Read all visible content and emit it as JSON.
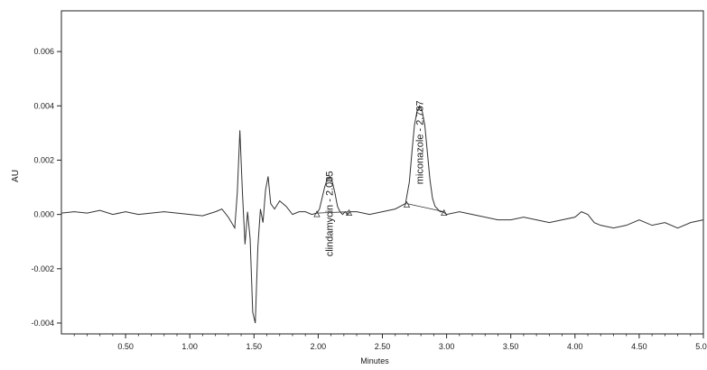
{
  "chart_data": {
    "type": "line",
    "title": "",
    "xlabel": "Minutes",
    "ylabel": "AU",
    "xlim": [
      0.0,
      5.0
    ],
    "ylim": [
      -0.0044,
      0.0075
    ],
    "xticks": [
      0.5,
      1.0,
      1.5,
      2.0,
      2.5,
      3.0,
      3.5,
      4.0,
      4.5,
      5.0
    ],
    "xtick_labels": [
      "0.50",
      "1.00",
      "1.50",
      "2.00",
      "2.50",
      "3.00",
      "3.50",
      "4.00",
      "4.50",
      "5.00"
    ],
    "yticks": [
      -0.004,
      -0.002,
      0.0,
      0.002,
      0.004,
      0.006
    ],
    "ytick_labels": [
      "-0.004",
      "-0.002",
      "0.000",
      "0.002",
      "0.004",
      "0.006"
    ],
    "grid": false,
    "legend": "none",
    "line_color": "#333333",
    "series": [
      {
        "x": [
          0.0,
          0.1,
          0.2,
          0.3,
          0.4,
          0.5,
          0.6,
          0.7,
          0.8,
          0.9,
          1.0,
          1.1,
          1.2,
          1.25,
          1.3,
          1.35,
          1.37,
          1.39,
          1.41,
          1.43,
          1.45,
          1.47,
          1.49,
          1.51,
          1.53,
          1.55,
          1.57,
          1.59,
          1.61,
          1.63,
          1.66,
          1.7,
          1.75,
          1.8,
          1.85,
          1.9,
          1.95,
          1.99,
          2.01,
          2.03,
          2.05,
          2.07,
          2.09,
          2.11,
          2.13,
          2.15,
          2.17,
          2.19,
          2.21,
          2.23,
          2.25,
          2.3,
          2.4,
          2.5,
          2.6,
          2.68,
          2.71,
          2.73,
          2.75,
          2.77,
          2.79,
          2.81,
          2.83,
          2.85,
          2.87,
          2.89,
          2.91,
          2.93,
          2.95,
          2.97,
          3.0,
          3.1,
          3.2,
          3.3,
          3.4,
          3.5,
          3.6,
          3.7,
          3.8,
          3.9,
          4.0,
          4.05,
          4.1,
          4.15,
          4.2,
          4.3,
          4.4,
          4.5,
          4.6,
          4.7,
          4.8,
          4.9,
          5.0
        ],
        "y": [
          5e-05,
          0.0001,
          5e-05,
          0.00015,
          0.0,
          0.0001,
          0.0,
          5e-05,
          0.0001,
          5e-05,
          0.0,
          -5e-05,
          0.0001,
          0.0002,
          -0.0001,
          -0.0005,
          0.0008,
          0.0031,
          0.0008,
          -0.0011,
          0.0001,
          -0.0009,
          -0.0036,
          -0.004,
          -0.0012,
          0.0002,
          -0.0003,
          0.0009,
          0.0014,
          0.0004,
          0.0002,
          0.0005,
          0.0003,
          0.0,
          0.0001,
          0.0001,
          0.0,
          5e-05,
          0.0002,
          0.0006,
          0.001,
          0.0013,
          0.0014,
          0.0012,
          0.0008,
          0.0003,
          0.0001,
          0.0,
          0.0001,
          0.0,
          0.0001,
          0.0001,
          0.0,
          0.0001,
          0.0002,
          0.0004,
          0.0012,
          0.0023,
          0.0033,
          0.0038,
          0.004,
          0.0038,
          0.0033,
          0.0023,
          0.0013,
          0.0006,
          0.0003,
          0.0002,
          0.0001,
          0.0001,
          0.0,
          0.0001,
          0.0,
          -0.0001,
          -0.0002,
          -0.0002,
          -0.0001,
          -0.0002,
          -0.0003,
          -0.0002,
          -0.0001,
          0.0001,
          0.0,
          -0.0003,
          -0.0004,
          -0.0005,
          -0.0004,
          -0.0002,
          -0.0004,
          -0.0003,
          -0.0005,
          -0.0003,
          -0.0002
        ]
      }
    ],
    "peaks": [
      {
        "label": "clindamycin - 2.085",
        "x": 2.085,
        "y": 0.0014,
        "baseline_start": [
          1.99,
          5e-05
        ],
        "baseline_end": [
          2.24,
          0.0001
        ]
      },
      {
        "label": "miconazole - 2.787",
        "x": 2.787,
        "y": 0.004,
        "baseline_start": [
          2.69,
          0.0004
        ],
        "baseline_end": [
          2.98,
          0.0001
        ]
      }
    ]
  }
}
